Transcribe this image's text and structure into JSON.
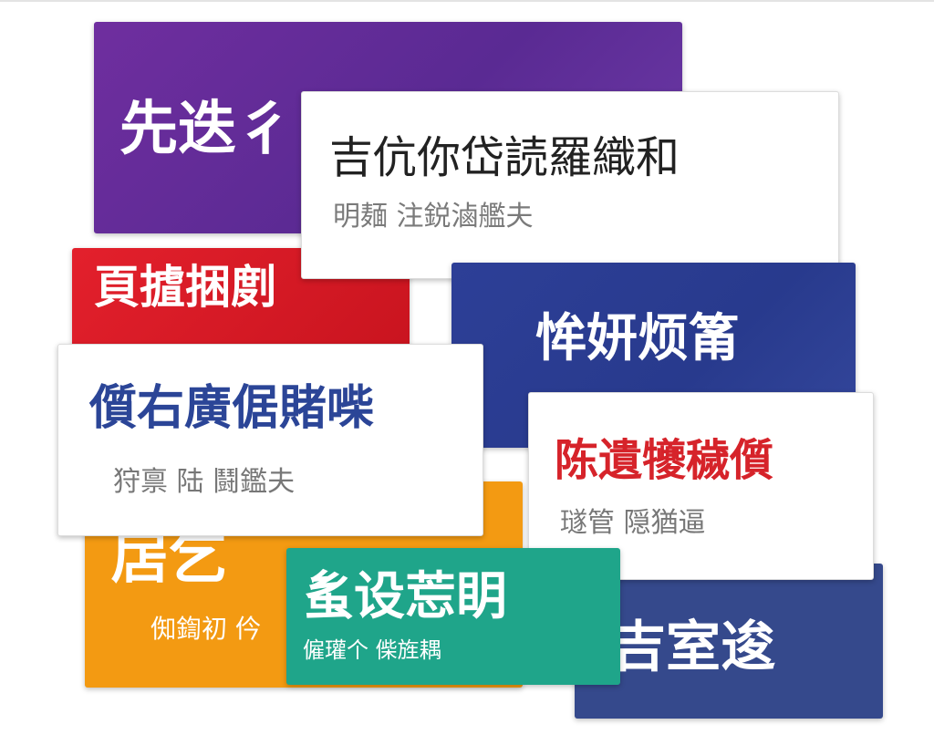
{
  "cards": {
    "purple": {
      "title": "先迭彳",
      "color": "#5a2a93"
    },
    "white_top": {
      "title": "吉伉你岱読羅織和",
      "subtitle": "明麺 注鋭滷艦夫"
    },
    "red": {
      "title": "頁摣捆剫",
      "color": "#d91a25"
    },
    "orange": {
      "title": "扂乞",
      "subtitle": "倁鍧初 仱",
      "color": "#f39a12"
    },
    "white_left": {
      "title": "儨右廣倨賭喍",
      "subtitle": "狩禀 陆 鬪鑑夫",
      "title_color": "#2b4597"
    },
    "blue_mid": {
      "title": "恈妍烦筩",
      "color": "#2d3f97"
    },
    "white_right": {
      "title": "陈遺犪穢儨",
      "subtitle": "璲管 隠猶逼",
      "title_color": "#d6232a"
    },
    "blue_bottom": {
      "title": "吉室逡",
      "color": "#35498c"
    },
    "teal": {
      "title": "蚃设莣眀",
      "subtitle": "僱瓘个 偨旌耦",
      "color": "#1fa58a"
    }
  }
}
